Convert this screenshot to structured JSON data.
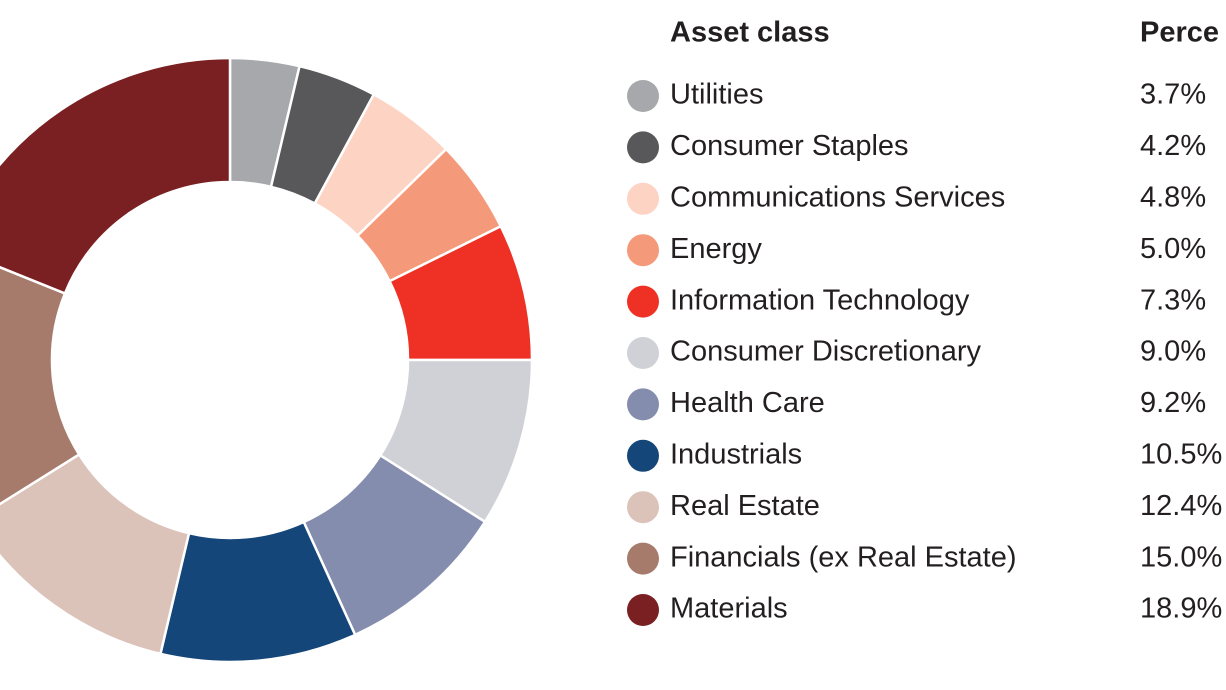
{
  "chart_data": {
    "type": "donut",
    "column_headers": [
      "Asset class",
      "Perce"
    ],
    "categories": [
      "Utilities",
      "Consumer Staples",
      "Communications Services",
      "Energy",
      "Information Technology",
      "Consumer Discretionary",
      "Health Care",
      "Industrials",
      "Real Estate",
      "Financials (ex Real Estate)",
      "Materials"
    ],
    "values": [
      3.7,
      4.2,
      4.8,
      5.0,
      7.3,
      9.0,
      9.2,
      10.5,
      12.4,
      15.0,
      18.9
    ],
    "value_labels": [
      "3.7%",
      "4.2%",
      "4.8%",
      "5.0%",
      "7.3%",
      "9.0%",
      "9.2%",
      "10.5%",
      "12.4%",
      "15.0%",
      "18.9%"
    ],
    "colors": [
      "#a7a8ab",
      "#58585a",
      "#fdd3c3",
      "#f49a7a",
      "#ee3124",
      "#d0d1d6",
      "#858daf",
      "#15467a",
      "#dbc3ba",
      "#a67b6c",
      "#7a1f22"
    ]
  }
}
